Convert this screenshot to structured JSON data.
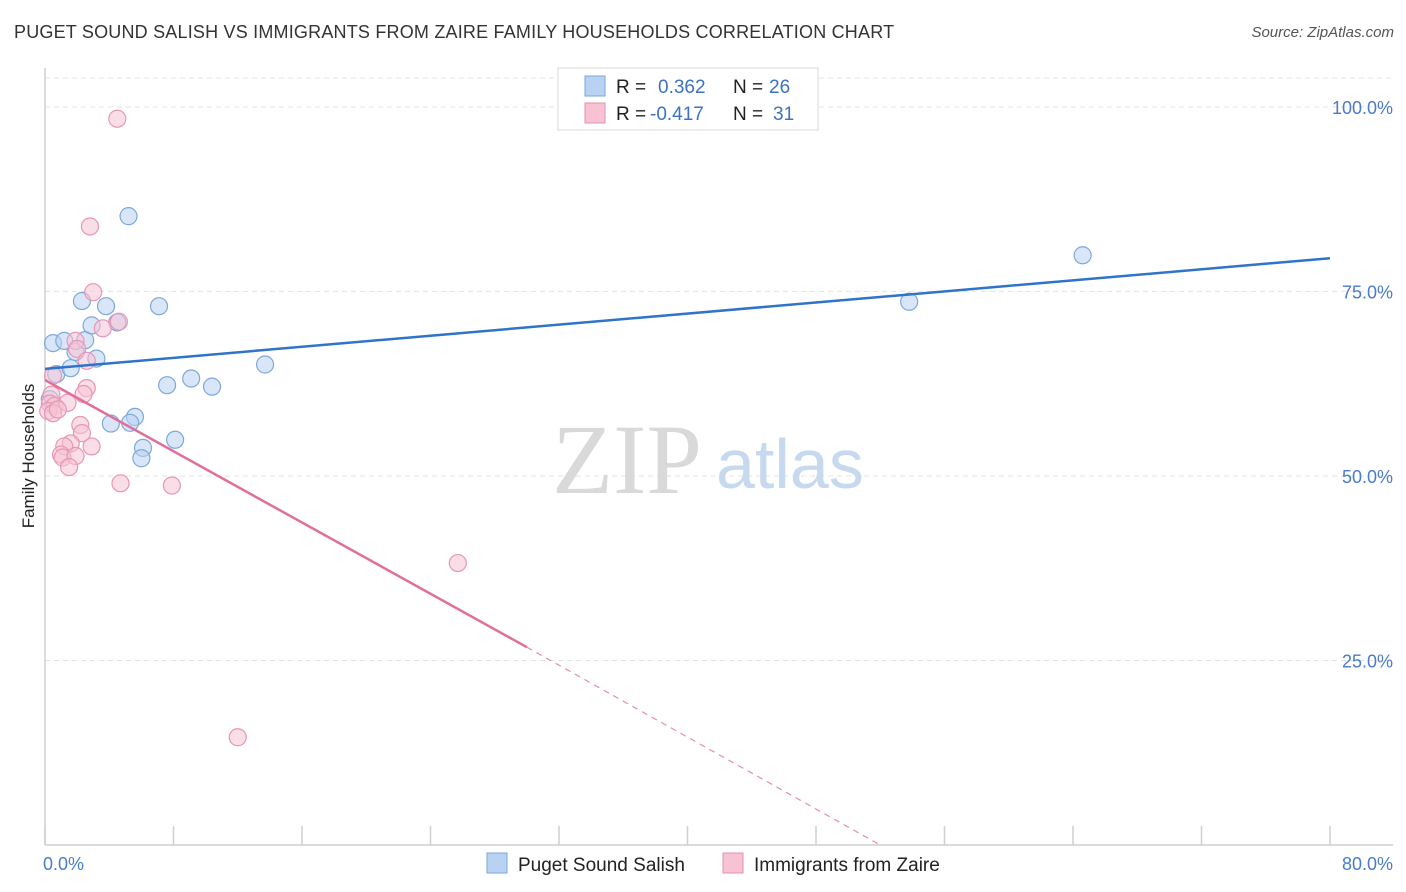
{
  "title": "PUGET SOUND SALISH VS IMMIGRANTS FROM ZAIRE FAMILY HOUSEHOLDS CORRELATION CHART",
  "source": "Source: ZipAtlas.com",
  "colors": {
    "blue": "#2f74c8",
    "blue_fill": "#b9d2f2",
    "pink": "#e0709a",
    "pink_fill": "#f6c2d4",
    "tick": "#4a7cc9"
  },
  "legend": {
    "r_label": "R =",
    "n_label": "N =",
    "series1": {
      "r": "0.362",
      "n": "26"
    },
    "series2": {
      "r": "-0.417",
      "n": "31"
    }
  },
  "watermark": {
    "zip": "ZIP",
    "atlas": "atlas"
  },
  "chart_data": {
    "type": "scatter",
    "title": "PUGET SOUND SALISH VS IMMIGRANTS FROM ZAIRE FAMILY HOUSEHOLDS CORRELATION CHART",
    "xlabel": "",
    "ylabel": "Family Households",
    "xlim": [
      0,
      80
    ],
    "ylim": [
      0,
      105
    ],
    "x_tick_labels": [
      "0.0%",
      "80.0%"
    ],
    "y_ticks": [
      25,
      50,
      75,
      100
    ],
    "y_tick_labels": [
      "25.0%",
      "50.0%",
      "75.0%",
      "100.0%"
    ],
    "grid": true,
    "legend_position": "top-center",
    "series": [
      {
        "name": "Puget Sound Salish",
        "r": 0.362,
        "n": 26,
        "points": [
          [
            0.5,
            68.0
          ],
          [
            1.2,
            68.3
          ],
          [
            0.7,
            63.8
          ],
          [
            1.6,
            64.6
          ],
          [
            1.9,
            66.8
          ],
          [
            2.3,
            73.7
          ],
          [
            2.5,
            68.4
          ],
          [
            2.9,
            70.4
          ],
          [
            3.2,
            65.9
          ],
          [
            3.8,
            73.0
          ],
          [
            4.5,
            70.8
          ],
          [
            5.2,
            85.2
          ],
          [
            5.6,
            58.0
          ],
          [
            4.1,
            57.1
          ],
          [
            5.3,
            57.2
          ],
          [
            6.1,
            53.8
          ],
          [
            6.0,
            52.4
          ],
          [
            7.1,
            73.0
          ],
          [
            7.6,
            62.3
          ],
          [
            8.1,
            54.9
          ],
          [
            9.1,
            63.2
          ],
          [
            10.4,
            62.1
          ],
          [
            13.7,
            65.1
          ],
          [
            53.8,
            73.6
          ],
          [
            64.6,
            79.9
          ],
          [
            0.3,
            60.4
          ]
        ],
        "trend": {
          "x": [
            0,
            80
          ],
          "y": [
            64.5,
            79.5
          ]
        }
      },
      {
        "name": "Immigrants from Zaire",
        "r": -0.417,
        "n": 31,
        "points": [
          [
            4.5,
            98.4
          ],
          [
            2.8,
            83.8
          ],
          [
            3.0,
            74.9
          ],
          [
            4.6,
            70.9
          ],
          [
            3.6,
            70.0
          ],
          [
            1.9,
            68.3
          ],
          [
            2.0,
            67.2
          ],
          [
            2.6,
            65.6
          ],
          [
            0.5,
            63.6
          ],
          [
            2.6,
            61.9
          ],
          [
            2.4,
            61.1
          ],
          [
            0.4,
            61.0
          ],
          [
            0.3,
            59.8
          ],
          [
            0.6,
            59.5
          ],
          [
            1.4,
            59.9
          ],
          [
            0.2,
            58.8
          ],
          [
            0.5,
            58.5
          ],
          [
            2.2,
            56.9
          ],
          [
            2.3,
            55.8
          ],
          [
            1.6,
            54.4
          ],
          [
            1.2,
            54.0
          ],
          [
            2.9,
            54.0
          ],
          [
            1.0,
            52.9
          ],
          [
            1.1,
            52.5
          ],
          [
            1.9,
            52.7
          ],
          [
            1.5,
            51.2
          ],
          [
            4.7,
            49.0
          ],
          [
            7.9,
            48.7
          ],
          [
            25.7,
            38.2
          ],
          [
            12.0,
            14.6
          ],
          [
            0.8,
            59.0
          ]
        ],
        "trend": {
          "x": [
            0,
            30
          ],
          "y": [
            63.0,
            26.8
          ]
        },
        "trend_extension": {
          "x": [
            30,
            52
          ],
          "y": [
            26.8,
            0.0
          ]
        }
      }
    ]
  }
}
